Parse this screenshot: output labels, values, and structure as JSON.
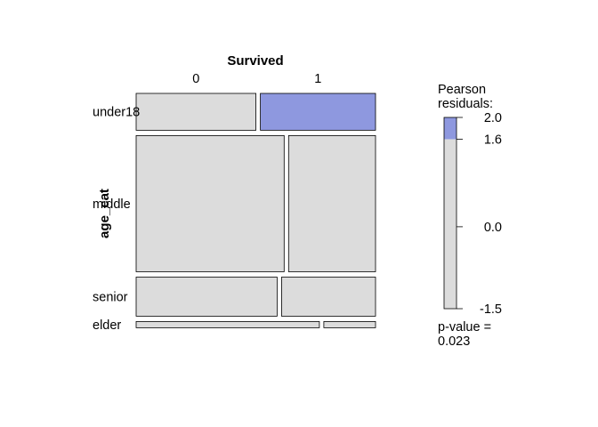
{
  "chart_data": {
    "type": "mosaic",
    "title": "Survived",
    "col_var": "Survived",
    "col_levels": [
      "0",
      "1"
    ],
    "row_var": "age_cat",
    "row_levels": [
      "under18",
      "middle",
      "senior",
      "elder"
    ],
    "cells": [
      {
        "row": "under18",
        "col": "0",
        "row_share": 0.165,
        "col_share": 0.51,
        "residual": -0.3
      },
      {
        "row": "under18",
        "col": "1",
        "row_share": 0.165,
        "col_share": 0.49,
        "residual": 1.9
      },
      {
        "row": "middle",
        "col": "0",
        "row_share": 0.61,
        "col_share": 0.63,
        "residual": -0.3
      },
      {
        "row": "middle",
        "col": "1",
        "row_share": 0.61,
        "col_share": 0.37,
        "residual": 0.2
      },
      {
        "row": "senior",
        "col": "0",
        "row_share": 0.175,
        "col_share": 0.6,
        "residual": 0.2
      },
      {
        "row": "senior",
        "col": "1",
        "row_share": 0.175,
        "col_share": 0.4,
        "residual": -0.4
      },
      {
        "row": "elder",
        "col": "0",
        "row_share": 0.028,
        "col_share": 0.78,
        "residual": 0.4
      },
      {
        "row": "elder",
        "col": "1",
        "row_share": 0.028,
        "col_share": 0.22,
        "residual": -0.6
      }
    ],
    "legend": {
      "title_line1": "Pearson",
      "title_line2": "residuals:",
      "ticks": [
        "2.0",
        "1.6",
        "0.0",
        "-1.5"
      ],
      "tick_values": [
        2.0,
        1.6,
        0.0,
        -1.5
      ],
      "range": [
        -1.5,
        2.0
      ],
      "shade_threshold": 1.6,
      "pvalue_label": "p-value =",
      "pvalue": "0.023"
    },
    "colors": {
      "neutral": "#dcdcdc",
      "positive": "#8e98df",
      "border": "#000000"
    }
  }
}
